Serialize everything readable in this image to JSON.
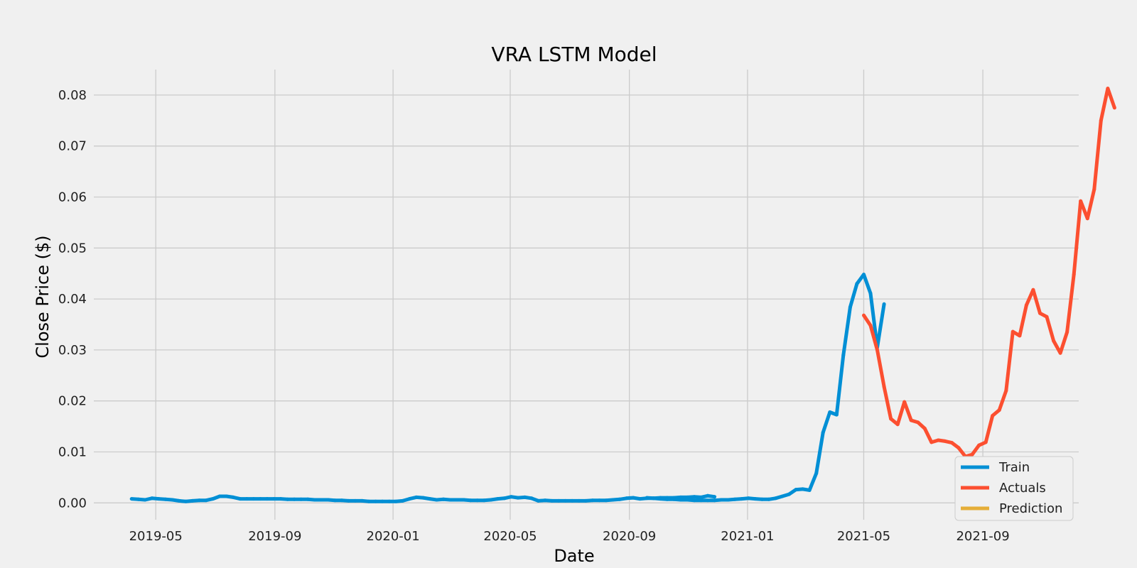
{
  "chart_data": {
    "type": "line",
    "title": "VRA LSTM Model",
    "xlabel": "Date",
    "ylabel": "Close Price ($)",
    "x_ticks": [
      "2019-05",
      "2019-09",
      "2020-01",
      "2020-05",
      "2020-09",
      "2021-01",
      "2021-05",
      "2021-09"
    ],
    "y_ticks": [
      "0.00",
      "0.01",
      "0.02",
      "0.03",
      "0.04",
      "0.05",
      "0.06",
      "0.07",
      "0.08"
    ],
    "xlim": [
      "2019-02-26",
      "2021-12-09"
    ],
    "ylim": [
      -0.0033,
      0.085
    ],
    "grid": true,
    "legend_position": "lower-right",
    "series": [
      {
        "name": "Train",
        "color": "#008fd5",
        "segments": [
          [
            [
              "2019-04-06",
              0.0008
            ],
            [
              "2019-04-13",
              0.0007
            ],
            [
              "2019-04-20",
              0.0006
            ],
            [
              "2019-04-27",
              0.0009
            ],
            [
              "2019-05-04",
              0.0008
            ],
            [
              "2019-05-11",
              0.0007
            ],
            [
              "2019-05-18",
              0.0006
            ],
            [
              "2019-05-25",
              0.0004
            ],
            [
              "2019-06-01",
              0.0003
            ],
            [
              "2019-06-08",
              0.0004
            ],
            [
              "2019-06-15",
              0.0005
            ],
            [
              "2019-06-22",
              0.0005
            ],
            [
              "2019-06-29",
              0.0008
            ],
            [
              "2019-07-06",
              0.0013
            ],
            [
              "2019-07-13",
              0.0013
            ],
            [
              "2019-07-20",
              0.0011
            ],
            [
              "2019-07-27",
              0.0008
            ],
            [
              "2019-08-03",
              0.0008
            ],
            [
              "2019-08-10",
              0.0008
            ],
            [
              "2019-08-17",
              0.0008
            ],
            [
              "2019-08-24",
              0.0008
            ],
            [
              "2019-08-31",
              0.0008
            ],
            [
              "2019-09-07",
              0.0008
            ],
            [
              "2019-09-14",
              0.0007
            ],
            [
              "2019-09-21",
              0.0007
            ],
            [
              "2019-09-28",
              0.0007
            ],
            [
              "2019-10-05",
              0.0007
            ],
            [
              "2019-10-12",
              0.0006
            ],
            [
              "2019-10-19",
              0.0006
            ],
            [
              "2019-10-26",
              0.0006
            ],
            [
              "2019-11-02",
              0.0005
            ],
            [
              "2019-11-09",
              0.0005
            ],
            [
              "2019-11-16",
              0.0004
            ],
            [
              "2019-11-23",
              0.0004
            ],
            [
              "2019-11-30",
              0.0004
            ],
            [
              "2019-12-07",
              0.0003
            ],
            [
              "2019-12-14",
              0.0003
            ],
            [
              "2019-12-21",
              0.0003
            ],
            [
              "2019-12-28",
              0.0003
            ],
            [
              "2020-01-04",
              0.0003
            ],
            [
              "2020-01-11",
              0.0004
            ],
            [
              "2020-01-18",
              0.0008
            ],
            [
              "2020-01-25",
              0.0011
            ],
            [
              "2020-02-01",
              0.001
            ],
            [
              "2020-02-08",
              0.0008
            ],
            [
              "2020-02-15",
              0.0006
            ],
            [
              "2020-02-22",
              0.0007
            ],
            [
              "2020-02-29",
              0.0006
            ],
            [
              "2020-03-07",
              0.0006
            ],
            [
              "2020-03-14",
              0.0006
            ],
            [
              "2020-03-21",
              0.0005
            ],
            [
              "2020-03-28",
              0.0005
            ],
            [
              "2020-04-04",
              0.0005
            ],
            [
              "2020-04-11",
              0.0006
            ],
            [
              "2020-04-18",
              0.0008
            ],
            [
              "2020-04-25",
              0.0009
            ],
            [
              "2020-05-02",
              0.0012
            ],
            [
              "2020-05-09",
              0.001
            ],
            [
              "2020-05-16",
              0.0011
            ],
            [
              "2020-05-23",
              0.0009
            ],
            [
              "2020-05-30",
              0.0004
            ],
            [
              "2020-06-06",
              0.0005
            ],
            [
              "2020-06-13",
              0.0004
            ],
            [
              "2020-06-20",
              0.0004
            ],
            [
              "2020-06-27",
              0.0004
            ],
            [
              "2020-07-04",
              0.0004
            ],
            [
              "2020-07-11",
              0.0004
            ],
            [
              "2020-07-18",
              0.0004
            ],
            [
              "2020-07-25",
              0.0005
            ],
            [
              "2020-08-01",
              0.0005
            ],
            [
              "2020-08-08",
              0.0005
            ],
            [
              "2020-08-15",
              0.0006
            ],
            [
              "2020-08-22",
              0.0007
            ],
            [
              "2020-08-29",
              0.0009
            ],
            [
              "2020-09-05",
              0.001
            ],
            [
              "2020-09-12",
              0.0008
            ],
            [
              "2020-09-19",
              0.0009
            ],
            [
              "2020-09-26",
              0.0009
            ],
            [
              "2020-10-03",
              0.001
            ],
            [
              "2020-10-10",
              0.001
            ],
            [
              "2020-10-17",
              0.001
            ],
            [
              "2020-10-24",
              0.0011
            ],
            [
              "2020-10-31",
              0.0011
            ],
            [
              "2020-11-07",
              0.0012
            ],
            [
              "2020-11-14",
              0.0011
            ],
            [
              "2020-11-21",
              0.0014
            ],
            [
              "2020-11-28",
              0.0012
            ]
          ],
          [
            [
              "2020-09-19",
              0.001
            ],
            [
              "2020-09-26",
              0.0009
            ],
            [
              "2020-10-03",
              0.0008
            ],
            [
              "2020-10-10",
              0.0007
            ],
            [
              "2020-10-17",
              0.0007
            ],
            [
              "2020-10-24",
              0.0006
            ],
            [
              "2020-10-31",
              0.0006
            ],
            [
              "2020-11-07",
              0.0005
            ],
            [
              "2020-11-14",
              0.0005
            ],
            [
              "2020-11-21",
              0.0005
            ],
            [
              "2020-11-28",
              0.0005
            ],
            [
              "2020-12-05",
              0.0006
            ],
            [
              "2020-12-12",
              0.0006
            ],
            [
              "2020-12-19",
              0.0007
            ],
            [
              "2020-12-26",
              0.0008
            ],
            [
              "2021-01-02",
              0.0009
            ],
            [
              "2021-01-09",
              0.0008
            ],
            [
              "2021-01-16",
              0.0007
            ],
            [
              "2021-01-23",
              0.0007
            ],
            [
              "2021-01-30",
              0.0009
            ],
            [
              "2021-02-06",
              0.0013
            ],
            [
              "2021-02-13",
              0.0017
            ],
            [
              "2021-02-20",
              0.0026
            ],
            [
              "2021-02-27",
              0.0027
            ],
            [
              "2021-03-06",
              0.0025
            ],
            [
              "2021-03-13",
              0.0058
            ],
            [
              "2021-03-20",
              0.0138
            ],
            [
              "2021-03-27",
              0.0178
            ],
            [
              "2021-04-03",
              0.0173
            ],
            [
              "2021-04-10",
              0.029
            ],
            [
              "2021-04-17",
              0.0384
            ],
            [
              "2021-04-24",
              0.043
            ],
            [
              "2021-05-01",
              0.0448
            ],
            [
              "2021-05-08",
              0.0411
            ],
            [
              "2021-05-15",
              0.0305
            ],
            [
              "2021-05-22",
              0.039
            ]
          ]
        ]
      },
      {
        "name": "Actuals",
        "color": "#fc4f30",
        "segments": [
          [
            [
              "2021-05-01",
              0.0368
            ],
            [
              "2021-05-08",
              0.0348
            ],
            [
              "2021-05-15",
              0.03
            ],
            [
              "2021-05-22",
              0.0228
            ],
            [
              "2021-05-29",
              0.0165
            ],
            [
              "2021-06-05",
              0.0154
            ],
            [
              "2021-06-12",
              0.0198
            ],
            [
              "2021-06-19",
              0.0162
            ],
            [
              "2021-06-26",
              0.0158
            ],
            [
              "2021-07-03",
              0.0146
            ],
            [
              "2021-07-10",
              0.0119
            ],
            [
              "2021-07-17",
              0.0123
            ],
            [
              "2021-07-24",
              0.0121
            ],
            [
              "2021-07-31",
              0.0118
            ],
            [
              "2021-08-07",
              0.0108
            ],
            [
              "2021-08-14",
              0.0091
            ],
            [
              "2021-08-21",
              0.0095
            ],
            [
              "2021-08-28",
              0.0113
            ],
            [
              "2021-09-04",
              0.0119
            ],
            [
              "2021-09-11",
              0.0171
            ],
            [
              "2021-09-18",
              0.0182
            ],
            [
              "2021-09-25",
              0.022
            ],
            [
              "2021-10-02",
              0.0336
            ],
            [
              "2021-10-09",
              0.0328
            ],
            [
              "2021-10-16",
              0.0388
            ],
            [
              "2021-10-23",
              0.0418
            ],
            [
              "2021-10-30",
              0.0372
            ],
            [
              "2021-11-06",
              0.0365
            ],
            [
              "2021-11-13",
              0.0318
            ],
            [
              "2021-11-20",
              0.0294
            ],
            [
              "2021-11-27",
              0.0335
            ],
            [
              "2021-12-04",
              0.0448
            ],
            [
              "2021-12-11",
              0.0592
            ],
            [
              "2021-12-18",
              0.0558
            ],
            [
              "2021-12-25",
              0.0615
            ],
            [
              "2022-01-01",
              0.075
            ],
            [
              "2022-01-08",
              0.0813
            ],
            [
              "2022-01-15",
              0.0775
            ]
          ]
        ]
      },
      {
        "name": "Prediction",
        "color": "#e5ae38",
        "segments": []
      }
    ]
  }
}
